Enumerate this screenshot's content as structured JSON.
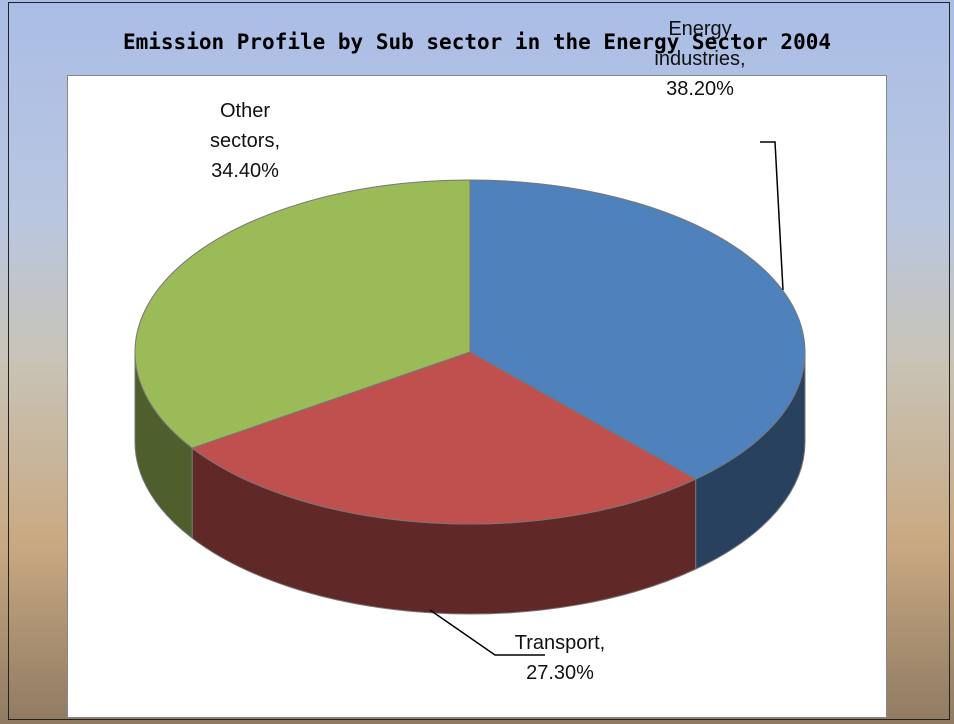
{
  "chart_data": {
    "type": "pie",
    "title": "Emission Profile by Sub sector in the Energy Sector 2004",
    "categories": [
      "Energy industries",
      "Transport",
      "Other sectors"
    ],
    "values": [
      38.2,
      27.3,
      34.4
    ],
    "value_labels": [
      "38.20%",
      "27.30%",
      "34.40%"
    ],
    "label_separator": ",",
    "colors": [
      "#4f81bd",
      "#c0504d",
      "#9bbb59"
    ]
  }
}
